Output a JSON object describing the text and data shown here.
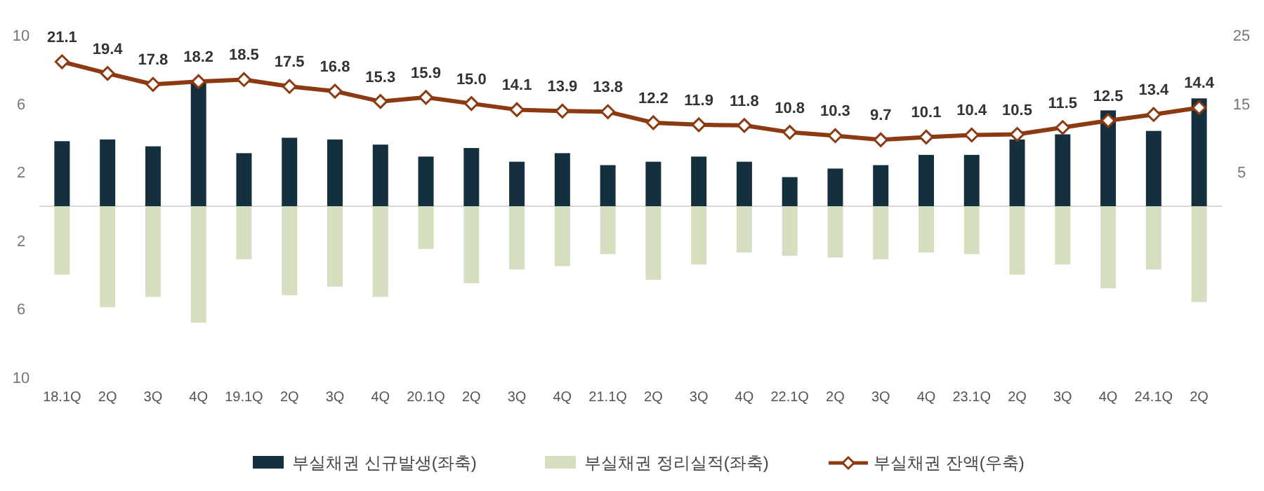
{
  "chart_data": {
    "type": "bar",
    "categories": [
      "18.1Q",
      "2Q",
      "3Q",
      "4Q",
      "19.1Q",
      "2Q",
      "3Q",
      "4Q",
      "20.1Q",
      "2Q",
      "3Q",
      "4Q",
      "21.1Q",
      "2Q",
      "3Q",
      "4Q",
      "22.1Q",
      "2Q",
      "3Q",
      "4Q",
      "23.1Q",
      "2Q",
      "3Q",
      "4Q",
      "24.1Q",
      "2Q"
    ],
    "series": [
      {
        "name": "부실채권 신규발생(좌축)",
        "color": "#14303f",
        "values": [
          3.8,
          3.9,
          3.5,
          7.2,
          3.1,
          4.0,
          3.9,
          3.6,
          2.9,
          3.4,
          2.6,
          3.1,
          2.4,
          2.6,
          2.9,
          2.6,
          1.7,
          2.2,
          2.4,
          3.0,
          3.0,
          3.9,
          4.2,
          5.6,
          4.4,
          6.3
        ]
      },
      {
        "name": "부실채권 정리실적(좌축)",
        "color": "#d5dfc0",
        "values": [
          -4.0,
          -5.9,
          -5.3,
          -6.8,
          -3.1,
          -5.2,
          -4.7,
          -5.3,
          -2.5,
          -4.5,
          -3.7,
          -3.5,
          -2.8,
          -4.3,
          -3.4,
          -2.7,
          -2.9,
          -3.0,
          -3.1,
          -2.7,
          -2.8,
          -4.0,
          -3.4,
          -4.8,
          -3.7,
          -5.6
        ]
      },
      {
        "name": "부실채권 잔액(우축)",
        "type": "line",
        "axis": "y2",
        "color": "#8b3a12",
        "marker": "diamond",
        "values": [
          21.1,
          19.4,
          17.8,
          18.2,
          18.5,
          17.5,
          16.8,
          15.3,
          15.9,
          15.0,
          14.1,
          13.9,
          13.8,
          12.2,
          11.9,
          11.8,
          10.8,
          10.3,
          9.7,
          10.1,
          10.4,
          10.5,
          11.5,
          12.5,
          13.4,
          14.4
        ],
        "value_labels": [
          "21.1",
          "19.4",
          "17.8",
          "18.2",
          "18.5",
          "17.5",
          "16.8",
          "15.3",
          "15.9",
          "15.0",
          "14.1",
          "13.9",
          "13.8",
          "12.2",
          "11.9",
          "11.8",
          "10.8",
          "10.3",
          "9.7",
          "10.1",
          "10.4",
          "10.5",
          "11.5",
          "12.5",
          "13.4",
          "14.4"
        ]
      }
    ],
    "ylim": [
      -10,
      10
    ],
    "yticks": [
      {
        "value": -10,
        "label": "10"
      },
      {
        "value": -6,
        "label": "6"
      },
      {
        "value": -2,
        "label": "2"
      },
      2,
      6,
      10
    ],
    "stacked": true,
    "y2lim": [
      0,
      25
    ],
    "y2ticks": [
      5,
      15,
      25
    ],
    "grid": false,
    "legend": "bottom"
  }
}
